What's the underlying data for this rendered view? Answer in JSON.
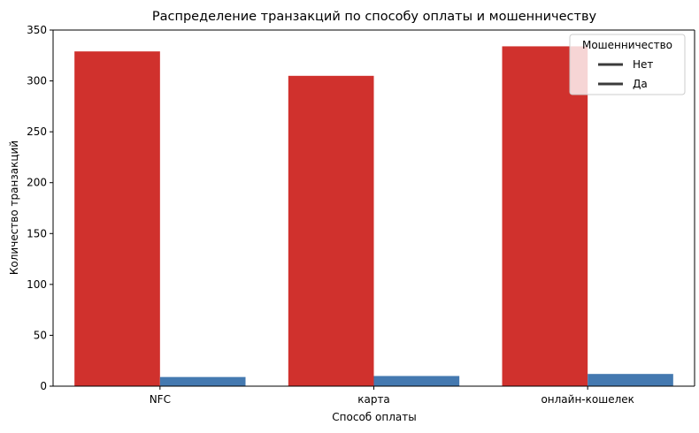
{
  "chart_data": {
    "type": "bar",
    "title": "Распределение транзакций по способу оплаты и мошенничеству",
    "xlabel": "Способ оплаты",
    "ylabel": "Количество транзакций",
    "categories": [
      "NFC",
      "карта",
      "онлайн-кошелек"
    ],
    "ylim": [
      0,
      350
    ],
    "yticks": [
      0,
      50,
      100,
      150,
      200,
      250,
      300,
      350
    ],
    "grid": false,
    "legend": {
      "title": "Мошенничество",
      "placement": "top-right",
      "entries": [
        "Нет",
        "Да"
      ],
      "swatch_color": "#3b3b3b"
    },
    "series": [
      {
        "name": "Нет",
        "color": "#d0312d",
        "values": [
          329,
          305,
          334
        ]
      },
      {
        "name": "Да",
        "color": "#4479b0",
        "values": [
          9,
          10,
          12
        ]
      }
    ]
  }
}
